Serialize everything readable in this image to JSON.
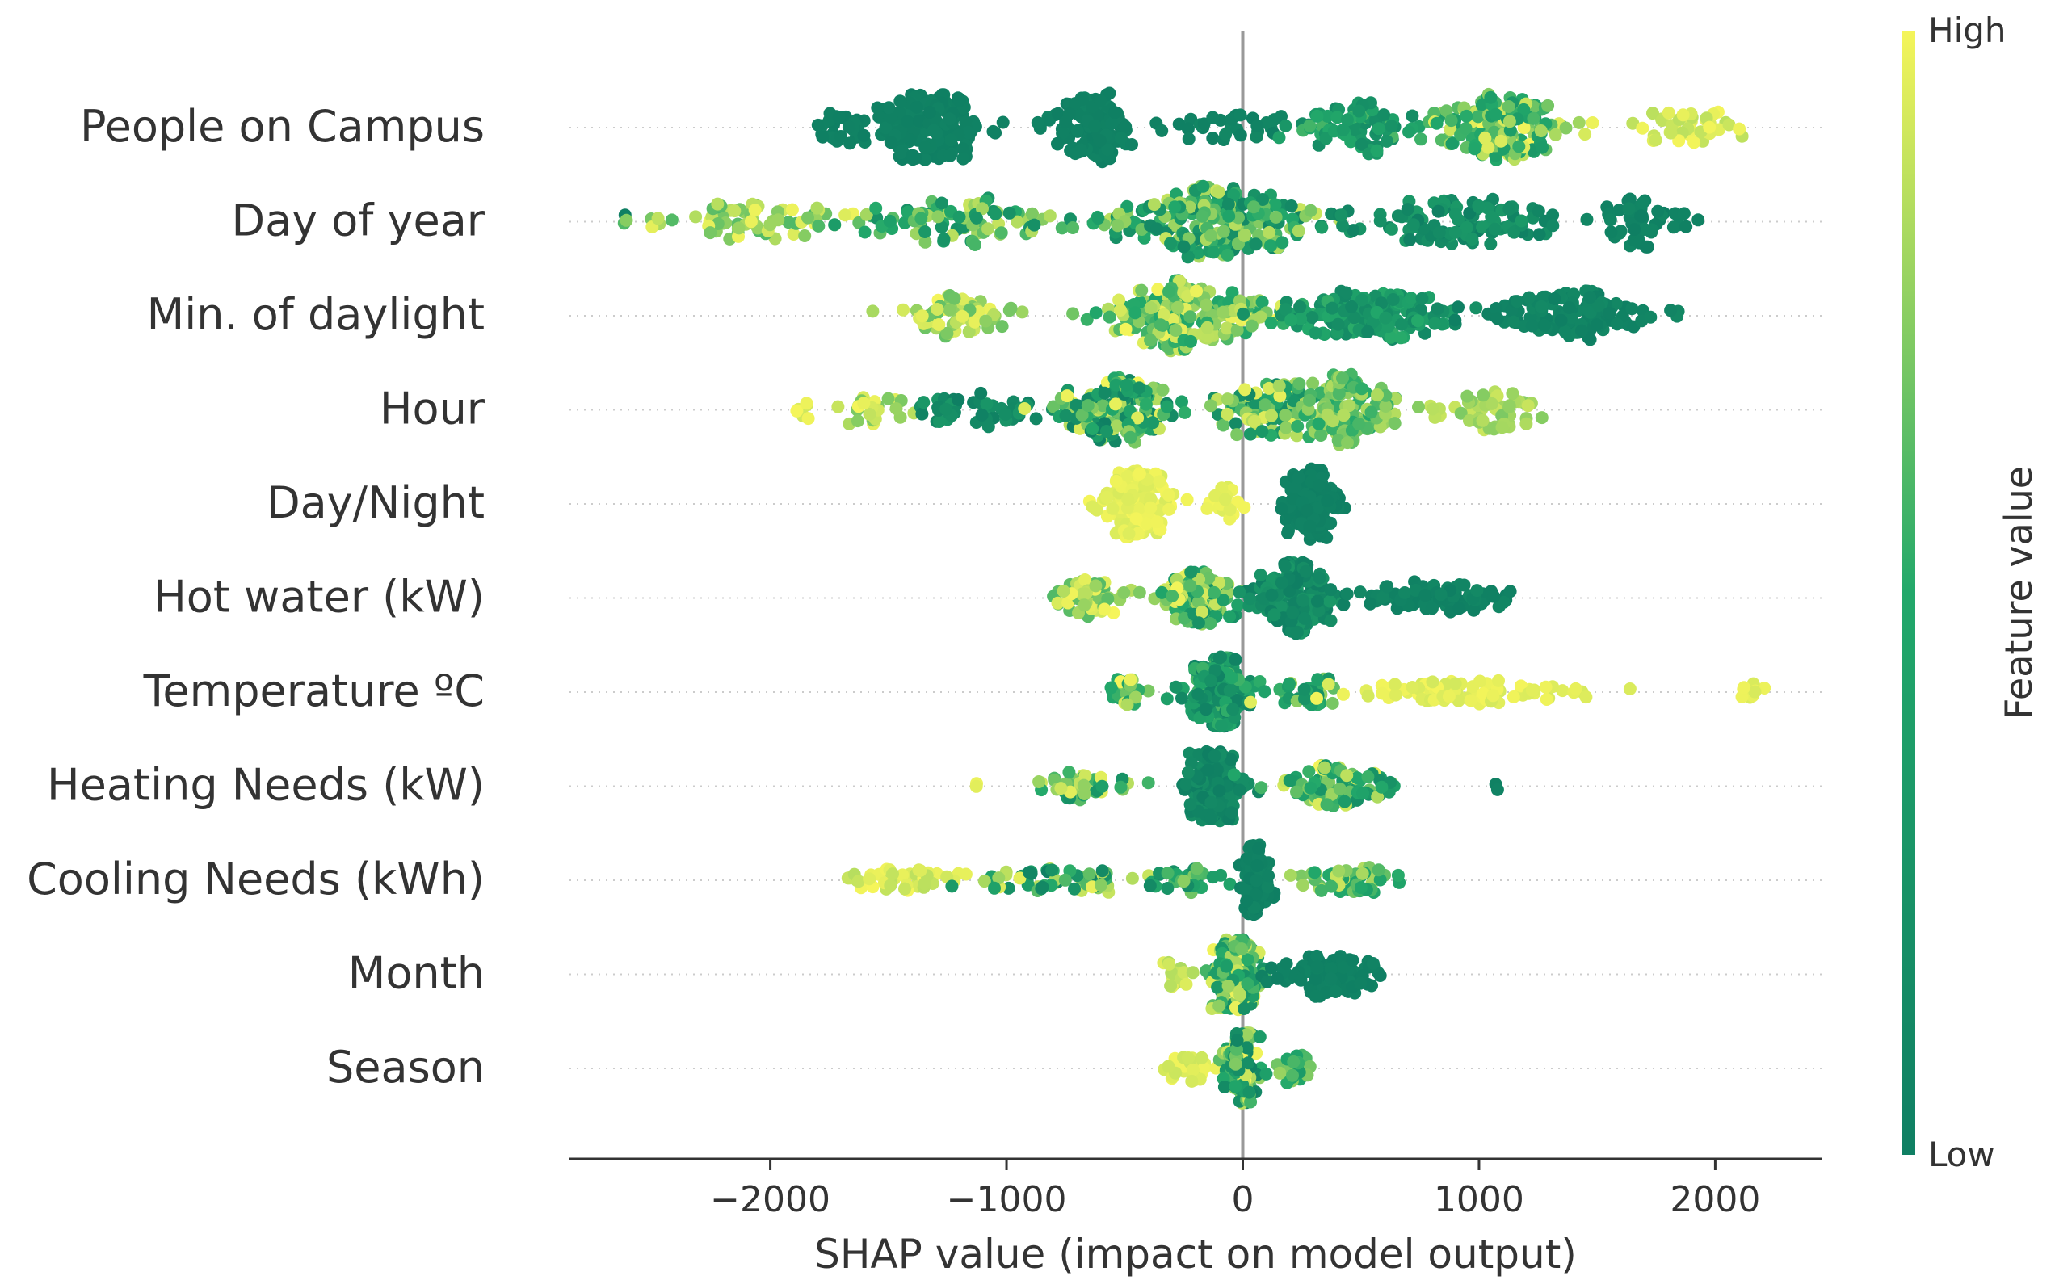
{
  "chart_data": {
    "type": "scatter",
    "subtype": "shap-beeswarm-summary",
    "xlabel": "SHAP value (impact on model output)",
    "xlim": [
      -2850,
      2450
    ],
    "xticks": [
      -2000,
      -1000,
      0,
      1000,
      2000
    ],
    "xtick_labels": [
      "−2000",
      "−1000",
      "0",
      "1000",
      "2000"
    ],
    "colorbar": {
      "label": "Feature value",
      "high_label": "High",
      "low_label": "Low",
      "low_color": "#0f7f63",
      "mid_color": "#22a86a",
      "high_color": "#f5f55a"
    },
    "features": [
      {
        "name": "People on Campus",
        "range": [
          -1800,
          2150
        ],
        "clusters": [
          {
            "center": -1320,
            "spread": 200,
            "count": 160,
            "value_min": 0.0,
            "value_max": 0.05
          },
          {
            "center": -640,
            "spread": 160,
            "count": 120,
            "value_min": 0.0,
            "value_max": 0.06
          },
          {
            "center": -1700,
            "spread": 100,
            "count": 30,
            "value_min": 0.0,
            "value_max": 0.05
          },
          {
            "center": -100,
            "spread": 250,
            "count": 30,
            "value_min": 0.0,
            "value_max": 0.1
          },
          {
            "center": 500,
            "spread": 250,
            "count": 80,
            "value_min": 0.15,
            "value_max": 0.6
          },
          {
            "center": 1100,
            "spread": 250,
            "count": 160,
            "value_min": 0.3,
            "value_max": 1.0
          },
          {
            "center": 1900,
            "spread": 180,
            "count": 40,
            "value_min": 0.85,
            "value_max": 1.0
          }
        ]
      },
      {
        "name": "Day of year",
        "range": [
          -2620,
          1950
        ],
        "clusters": [
          {
            "center": -2620,
            "spread": 10,
            "count": 1,
            "value_min": 0.0,
            "value_max": 0.02
          },
          {
            "center": -2100,
            "spread": 350,
            "count": 70,
            "value_min": 0.6,
            "value_max": 1.0
          },
          {
            "center": -1200,
            "spread": 400,
            "count": 90,
            "value_min": 0.2,
            "value_max": 0.9
          },
          {
            "center": -100,
            "spread": 380,
            "count": 230,
            "value_min": 0.1,
            "value_max": 0.9
          },
          {
            "center": 900,
            "spread": 450,
            "count": 110,
            "value_min": 0.0,
            "value_max": 0.35
          },
          {
            "center": 1700,
            "spread": 200,
            "count": 50,
            "value_min": 0.0,
            "value_max": 0.1
          }
        ]
      },
      {
        "name": "Min. of daylight",
        "range": [
          -1570,
          1900
        ],
        "clusters": [
          {
            "center": -1200,
            "spread": 280,
            "count": 60,
            "value_min": 0.65,
            "value_max": 1.0
          },
          {
            "center": -250,
            "spread": 320,
            "count": 210,
            "value_min": 0.45,
            "value_max": 1.0
          },
          {
            "center": 500,
            "spread": 350,
            "count": 150,
            "value_min": 0.1,
            "value_max": 0.55
          },
          {
            "center": 1400,
            "spread": 300,
            "count": 120,
            "value_min": 0.0,
            "value_max": 0.12
          }
        ]
      },
      {
        "name": "Hour",
        "range": [
          -1900,
          1450
        ],
        "clusters": [
          {
            "center": -1850,
            "spread": 40,
            "count": 6,
            "value_min": 0.9,
            "value_max": 1.0
          },
          {
            "center": -1550,
            "spread": 130,
            "count": 25,
            "value_min": 0.7,
            "value_max": 1.0
          },
          {
            "center": -1150,
            "spread": 250,
            "count": 45,
            "value_min": 0.0,
            "value_max": 0.3
          },
          {
            "center": -550,
            "spread": 230,
            "count": 160,
            "value_min": 0.0,
            "value_max": 1.0
          },
          {
            "center": 100,
            "spread": 200,
            "count": 110,
            "value_min": 0.1,
            "value_max": 1.0
          },
          {
            "center": 450,
            "spread": 180,
            "count": 130,
            "value_min": 0.5,
            "value_max": 0.85
          },
          {
            "center": 1050,
            "spread": 250,
            "count": 55,
            "value_min": 0.7,
            "value_max": 0.9
          }
        ]
      },
      {
        "name": "Day/Night",
        "range": [
          -650,
          480
        ],
        "clusters": [
          {
            "center": -450,
            "spread": 120,
            "count": 180,
            "value_min": 0.93,
            "value_max": 1.0
          },
          {
            "center": -70,
            "spread": 80,
            "count": 25,
            "value_min": 0.93,
            "value_max": 1.0
          },
          {
            "center": 290,
            "spread": 90,
            "count": 170,
            "value_min": 0.0,
            "value_max": 0.05
          }
        ]
      },
      {
        "name": "Hot water (kW)",
        "range": [
          -880,
          1390
        ],
        "clusters": [
          {
            "center": -650,
            "spread": 150,
            "count": 60,
            "value_min": 0.6,
            "value_max": 1.0
          },
          {
            "center": -200,
            "spread": 150,
            "count": 130,
            "value_min": 0.2,
            "value_max": 1.0
          },
          {
            "center": 230,
            "spread": 130,
            "count": 200,
            "value_min": 0.0,
            "value_max": 0.3
          },
          {
            "center": 800,
            "spread": 300,
            "count": 90,
            "value_min": 0.0,
            "value_max": 0.12
          }
        ]
      },
      {
        "name": "Temperature ºC",
        "range": [
          -650,
          2230
        ],
        "clusters": [
          {
            "center": -500,
            "spread": 100,
            "count": 25,
            "value_min": 0.4,
            "value_max": 1.0
          },
          {
            "center": -100,
            "spread": 120,
            "count": 220,
            "value_min": 0.0,
            "value_max": 0.6
          },
          {
            "center": 250,
            "spread": 120,
            "count": 30,
            "value_min": 0.2,
            "value_max": 0.8
          },
          {
            "center": 1000,
            "spread": 500,
            "count": 80,
            "value_min": 0.92,
            "value_max": 1.0
          },
          {
            "center": 2150,
            "spread": 60,
            "count": 10,
            "value_min": 0.92,
            "value_max": 1.0
          }
        ]
      },
      {
        "name": "Heating Needs (kW)",
        "range": [
          -1130,
          1080
        ],
        "clusters": [
          {
            "center": -1130,
            "spread": 10,
            "count": 2,
            "value_min": 0.92,
            "value_max": 1.0
          },
          {
            "center": -650,
            "spread": 180,
            "count": 40,
            "value_min": 0.1,
            "value_max": 1.0
          },
          {
            "center": -120,
            "spread": 100,
            "count": 200,
            "value_min": 0.0,
            "value_max": 0.2
          },
          {
            "center": 400,
            "spread": 220,
            "count": 100,
            "value_min": 0.2,
            "value_max": 1.0
          },
          {
            "center": 1080,
            "spread": 10,
            "count": 2,
            "value_min": 0.0,
            "value_max": 0.05
          }
        ]
      },
      {
        "name": "Cooling Needs (kWh)",
        "range": [
          -1680,
          720
        ],
        "clusters": [
          {
            "center": -1450,
            "spread": 200,
            "count": 40,
            "value_min": 0.85,
            "value_max": 1.0
          },
          {
            "center": -800,
            "spread": 300,
            "count": 60,
            "value_min": 0.0,
            "value_max": 1.0
          },
          {
            "center": -250,
            "spread": 150,
            "count": 30,
            "value_min": 0.1,
            "value_max": 0.8
          },
          {
            "center": 60,
            "spread": 50,
            "count": 150,
            "value_min": 0.0,
            "value_max": 0.08
          },
          {
            "center": 450,
            "spread": 180,
            "count": 50,
            "value_min": 0.4,
            "value_max": 0.9
          }
        ]
      },
      {
        "name": "Month",
        "range": [
          -350,
          660
        ],
        "clusters": [
          {
            "center": -280,
            "spread": 60,
            "count": 15,
            "value_min": 0.8,
            "value_max": 1.0
          },
          {
            "center": -30,
            "spread": 90,
            "count": 200,
            "value_min": 0.2,
            "value_max": 1.0
          },
          {
            "center": 380,
            "spread": 230,
            "count": 100,
            "value_min": 0.0,
            "value_max": 0.06
          }
        ]
      },
      {
        "name": "Season",
        "range": [
          -350,
          310
        ],
        "clusters": [
          {
            "center": -230,
            "spread": 100,
            "count": 40,
            "value_min": 0.9,
            "value_max": 1.0
          },
          {
            "center": -10,
            "spread": 60,
            "count": 200,
            "value_min": 0.0,
            "value_max": 1.0
          },
          {
            "center": 220,
            "spread": 70,
            "count": 30,
            "value_min": 0.3,
            "value_max": 0.9
          }
        ]
      }
    ]
  }
}
